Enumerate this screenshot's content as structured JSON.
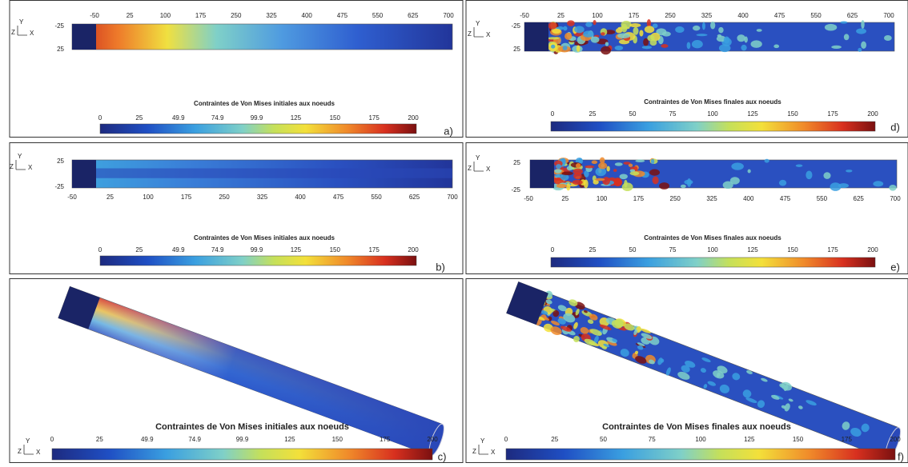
{
  "panels": [
    {
      "label": "a)",
      "legend_title": "Contraintes de Von Mises initiales aux noeuds",
      "legend_ticks": [
        0,
        25,
        49.9,
        74.9,
        99.9,
        125,
        150,
        175,
        200
      ],
      "x_ticks": [
        -50,
        25,
        100,
        175,
        250,
        325,
        400,
        475,
        550,
        625,
        700
      ],
      "y_ticks": [
        -25,
        25
      ],
      "triad": [
        "Y",
        "X",
        "Z"
      ]
    },
    {
      "label": "b)",
      "legend_title": "Contraintes de Von Mises initiales aux noeuds",
      "legend_ticks": [
        0,
        25,
        49.9,
        74.9,
        99.9,
        125,
        150,
        175,
        200
      ],
      "x_ticks": [
        -50,
        25,
        100,
        175,
        250,
        325,
        400,
        475,
        550,
        625,
        700
      ],
      "y_ticks": [
        25,
        -25
      ],
      "triad": [
        "Y",
        "X",
        "Z"
      ]
    },
    {
      "label": "c)",
      "legend_title": "Contraintes de Von Mises initiales aux noeuds",
      "legend_ticks": [
        0,
        25,
        49.9,
        74.9,
        99.9,
        125,
        150,
        175,
        200
      ],
      "x_ticks": [],
      "y_ticks": [],
      "triad": [
        "Y",
        "X",
        "Z"
      ]
    },
    {
      "label": "d)",
      "legend_title": "Contraintes de Von Mises finales aux noeuds",
      "legend_ticks": [
        0,
        25,
        50,
        75,
        100,
        125,
        150,
        175,
        200
      ],
      "x_ticks": [
        -50,
        25,
        100,
        175,
        250,
        325,
        400,
        475,
        550,
        625,
        700
      ],
      "y_ticks": [
        -25,
        25
      ],
      "triad": [
        "Y",
        "X",
        "Z"
      ]
    },
    {
      "label": "e)",
      "legend_title": "Contraintes de Von Mises finales aux noeuds",
      "legend_ticks": [
        0,
        25,
        50,
        75,
        100,
        125,
        150,
        175,
        200
      ],
      "x_ticks": [
        -50,
        25,
        100,
        175,
        250,
        325,
        400,
        475,
        550,
        625,
        700
      ],
      "y_ticks": [
        25,
        -25
      ],
      "triad": [
        "Y",
        "X",
        "Z"
      ]
    },
    {
      "label": "f)",
      "legend_title": "Contraintes de Von Mises finales aux noeuds",
      "legend_ticks": [
        0,
        25,
        50,
        75,
        100,
        125,
        150,
        175,
        200
      ],
      "x_ticks": [],
      "y_ticks": [],
      "triad": [
        "Y",
        "X",
        "Z"
      ]
    }
  ]
}
